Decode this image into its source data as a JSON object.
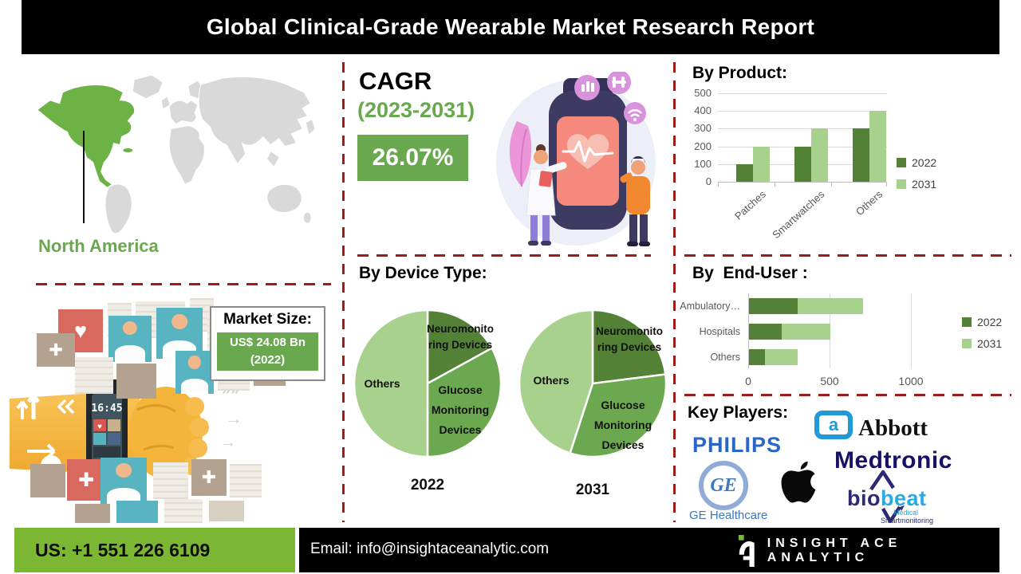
{
  "header": {
    "title": "Global Clinical-Grade Wearable Market Research Report"
  },
  "left_panel": {
    "region_label": "North America",
    "market_size": {
      "label": "Market Size:",
      "value": "US$ 24.08 Bn",
      "year": "(2022)"
    },
    "watch_time": "16:45"
  },
  "cagr_section": {
    "title": "CAGR",
    "period": "(2023-2031)",
    "value": "26.07%"
  },
  "chart_data": [
    {
      "id": "by_product",
      "type": "bar",
      "title": "By Product:",
      "categories": [
        "Patches",
        "Smartwatches",
        "Others"
      ],
      "series": [
        {
          "name": "2022",
          "color": "#538135",
          "values": [
            100,
            200,
            300
          ]
        },
        {
          "name": "2031",
          "color": "#a9d18e",
          "values": [
            200,
            300,
            400
          ]
        }
      ],
      "ylim": [
        0,
        500
      ],
      "yticks": [
        0,
        100,
        200,
        300,
        400,
        500
      ],
      "grid": true,
      "legend_position": "right"
    },
    {
      "id": "by_device_type",
      "type": "pie",
      "title": "By Device Type:",
      "unit": "percent-share",
      "pies": [
        {
          "year": "2022",
          "slices": [
            {
              "label": "Neuromonitoring Devices",
              "lines": [
                "Neuromonito",
                "ring Devices"
              ],
              "value": 17,
              "color": "#538135"
            },
            {
              "label": "Glucose Monitoring Devices",
              "lines": [
                "Glucose",
                "Monitoring",
                "Devices"
              ],
              "value": 33,
              "color": "#6ba84f"
            },
            {
              "label": "Others",
              "lines": [
                "Others"
              ],
              "value": 50,
              "color": "#a9d18e"
            }
          ]
        },
        {
          "year": "2031",
          "slices": [
            {
              "label": "Neuromonitoring Devices",
              "lines": [
                "Neuromonito",
                "ring Devices"
              ],
              "value": 23,
              "color": "#538135"
            },
            {
              "label": "Glucose Monitoring Devices",
              "lines": [
                "Glucose",
                "Monitoring",
                "Devices"
              ],
              "value": 32,
              "color": "#6ba84f"
            },
            {
              "label": "Others",
              "lines": [
                "Others"
              ],
              "value": 45,
              "color": "#a9d18e"
            }
          ]
        }
      ]
    },
    {
      "id": "by_end_user",
      "type": "bar-horizontal-stacked",
      "title": "By  End-User :",
      "categories": [
        "Ambulatory…",
        "Hospitals",
        "Others"
      ],
      "series": [
        {
          "name": "2022",
          "color": "#538135",
          "values": [
            300,
            200,
            100
          ]
        },
        {
          "name": "2031",
          "color": "#a9d18e",
          "values": [
            400,
            300,
            200
          ]
        }
      ],
      "xlim": [
        0,
        1400
      ],
      "xticks": [
        0,
        500,
        1000
      ],
      "grid": true,
      "legend_position": "right"
    }
  ],
  "key_players": {
    "title": "Key Players:",
    "philips": "PHILIPS",
    "abbott": "Abbott",
    "abbott_mark_letter": "a",
    "medtronic": "Medtronic",
    "ge_monogram": "GE",
    "ge_label": "GE Healthcare",
    "apple_icon": "apple-logo",
    "biobeat": {
      "bio": "bio",
      "beat": "beat",
      "sub1": "Medical",
      "sub2": "Smartmonitoring"
    }
  },
  "footer": {
    "phone": "US: +1 551 226 6109",
    "email": "Email: info@insightaceanalytic.com",
    "brand": "INSIGHT ACE ANALYTIC"
  },
  "colors": {
    "dark_green": "#538135",
    "mid_green": "#6aa84f",
    "light_green": "#a9d18e",
    "map_green": "#6db244",
    "divider_red": "#9e1b1b",
    "footer_green": "#7cb733",
    "banner_black": "#000000"
  }
}
